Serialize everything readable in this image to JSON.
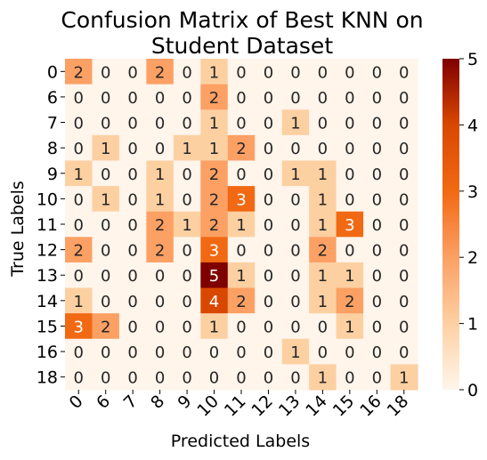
{
  "chart_data": {
    "type": "heatmap",
    "title_lines": [
      "Confusion Matrix of Best KNN on",
      "Student Dataset"
    ],
    "xlabel": "Predicted Labels",
    "ylabel": "True Labels",
    "x_categories": [
      "0",
      "6",
      "7",
      "8",
      "9",
      "10",
      "11",
      "12",
      "13",
      "14",
      "15",
      "16",
      "18"
    ],
    "y_categories": [
      "0",
      "6",
      "7",
      "8",
      "9",
      "10",
      "11",
      "12",
      "13",
      "14",
      "15",
      "16",
      "18"
    ],
    "values": [
      [
        2,
        0,
        0,
        2,
        0,
        1,
        0,
        0,
        0,
        0,
        0,
        0,
        0
      ],
      [
        0,
        0,
        0,
        0,
        0,
        2,
        0,
        0,
        0,
        0,
        0,
        0,
        0
      ],
      [
        0,
        0,
        0,
        0,
        0,
        1,
        0,
        0,
        1,
        0,
        0,
        0,
        0
      ],
      [
        0,
        1,
        0,
        0,
        1,
        1,
        2,
        0,
        0,
        0,
        0,
        0,
        0
      ],
      [
        1,
        0,
        0,
        1,
        0,
        2,
        0,
        0,
        1,
        1,
        0,
        0,
        0
      ],
      [
        0,
        1,
        0,
        1,
        0,
        2,
        3,
        0,
        0,
        1,
        0,
        0,
        0
      ],
      [
        0,
        0,
        0,
        2,
        1,
        2,
        1,
        0,
        0,
        1,
        3,
        0,
        0
      ],
      [
        2,
        0,
        0,
        2,
        0,
        3,
        0,
        0,
        0,
        2,
        0,
        0,
        0
      ],
      [
        0,
        0,
        0,
        0,
        0,
        5,
        1,
        0,
        0,
        1,
        1,
        0,
        0
      ],
      [
        1,
        0,
        0,
        0,
        0,
        4,
        2,
        0,
        0,
        1,
        2,
        0,
        0
      ],
      [
        3,
        2,
        0,
        0,
        0,
        1,
        0,
        0,
        0,
        0,
        1,
        0,
        0
      ],
      [
        0,
        0,
        0,
        0,
        0,
        0,
        0,
        0,
        1,
        0,
        0,
        0,
        0
      ],
      [
        0,
        0,
        0,
        0,
        0,
        0,
        0,
        0,
        0,
        1,
        0,
        0,
        1
      ]
    ],
    "vmin": 0,
    "vmax": 5,
    "colormap": "OrRd-like (Oranges/Reds)",
    "colorbar_ticks": [
      0,
      1,
      2,
      3,
      4,
      5
    ],
    "grid": false,
    "annotations": true
  }
}
